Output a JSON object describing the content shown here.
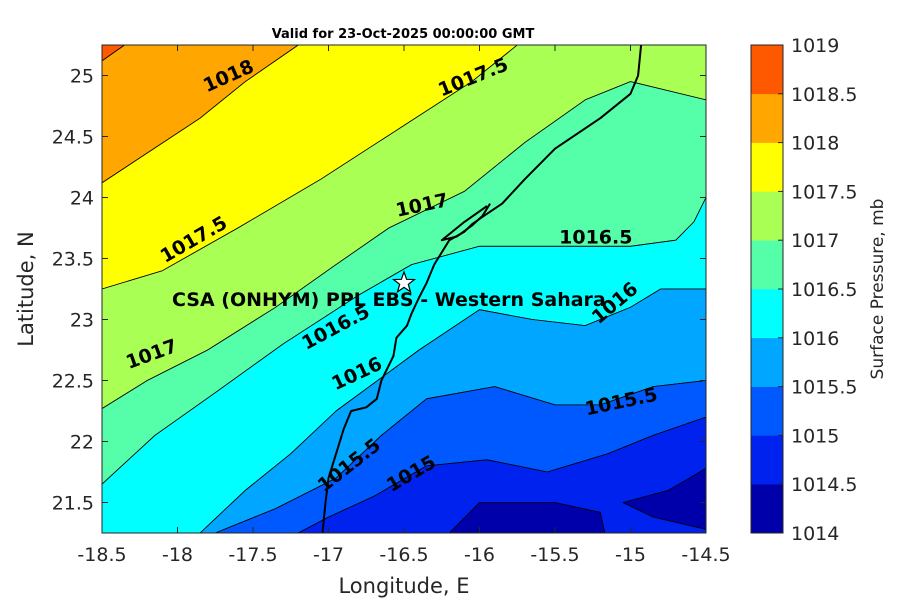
{
  "chart_data": {
    "type": "contour",
    "title": "Valid for 23-Oct-2025 00:00:00 GMT",
    "xlabel": "Longitude, E",
    "ylabel": "Latitude, N",
    "xlim": [
      -18.5,
      -14.5
    ],
    "ylim": [
      21.25,
      25.25
    ],
    "xticks": [
      "-18.5",
      "-18",
      "-17.5",
      "-17",
      "-16.5",
      "-16",
      "-15.5",
      "-15",
      "-14.5"
    ],
    "yticks": [
      "21.5",
      "22",
      "22.5",
      "23",
      "23.5",
      "24",
      "24.5",
      "25"
    ],
    "colorbar": {
      "label": "Surface Pressure, mb",
      "levels": [
        "1014",
        "1014.5",
        "1015",
        "1015.5",
        "1016",
        "1016.5",
        "1017",
        "1017.5",
        "1018",
        "1018.5",
        "1019"
      ],
      "colors": [
        "#0000aa",
        "#0022ee",
        "#0059ff",
        "#00a6ff",
        "#00ffff",
        "#55ffaa",
        "#aaff55",
        "#ffff00",
        "#ffa600",
        "#ff5900",
        "#ff0000"
      ]
    },
    "contour_labels": [
      {
        "text": "1018",
        "lon": -17.66,
        "lat": 24.99,
        "angle": -24
      },
      {
        "text": "1017.5",
        "lon": -16.04,
        "lat": 24.98,
        "angle": -22
      },
      {
        "text": "1017.5",
        "lon": -17.89,
        "lat": 23.65,
        "angle": -30
      },
      {
        "text": "1017",
        "lon": -16.38,
        "lat": 23.93,
        "angle": -12
      },
      {
        "text": "1016.5",
        "lon": -15.23,
        "lat": 23.67,
        "angle": 0
      },
      {
        "text": "1017",
        "lon": -18.17,
        "lat": 22.71,
        "angle": -20
      },
      {
        "text": "1016.5",
        "lon": -16.95,
        "lat": 22.93,
        "angle": -28
      },
      {
        "text": "1016",
        "lon": -15.1,
        "lat": 23.13,
        "angle": -40
      },
      {
        "text": "1016",
        "lon": -16.81,
        "lat": 22.55,
        "angle": -25
      },
      {
        "text": "1015.5",
        "lon": -15.06,
        "lat": 22.32,
        "angle": -12
      },
      {
        "text": "1015.5",
        "lon": -16.86,
        "lat": 21.8,
        "angle": -38
      },
      {
        "text": "1015",
        "lon": -16.45,
        "lat": 21.73,
        "angle": -30
      }
    ],
    "site": {
      "name": "CSA (ONHYM) PPL EBS - Western Sahara",
      "lon": -16.5,
      "lat": 23.3
    },
    "fill_regions": [
      {
        "level_index": 9,
        "poly": [
          [
            -18.5,
            25.25
          ],
          [
            -18.5,
            25.12
          ],
          [
            -18.35,
            25.25
          ]
        ]
      },
      {
        "level_index": 8,
        "poly": [
          [
            -18.5,
            25.12
          ],
          [
            -18.35,
            25.25
          ],
          [
            -17.2,
            25.25
          ],
          [
            -17.55,
            24.95
          ],
          [
            -17.85,
            24.65
          ],
          [
            -18.5,
            24.12
          ]
        ]
      },
      {
        "level_index": 7,
        "poly": [
          [
            -18.5,
            24.12
          ],
          [
            -17.85,
            24.65
          ],
          [
            -17.55,
            24.95
          ],
          [
            -17.2,
            25.25
          ],
          [
            -15.75,
            25.25
          ],
          [
            -16.05,
            24.95
          ],
          [
            -16.55,
            24.55
          ],
          [
            -17.05,
            24.15
          ],
          [
            -17.6,
            23.75
          ],
          [
            -18.1,
            23.4
          ],
          [
            -18.5,
            23.25
          ]
        ]
      },
      {
        "level_index": 6,
        "poly": [
          [
            -18.5,
            23.25
          ],
          [
            -18.1,
            23.4
          ],
          [
            -17.6,
            23.75
          ],
          [
            -17.05,
            24.15
          ],
          [
            -16.55,
            24.55
          ],
          [
            -16.05,
            24.95
          ],
          [
            -15.75,
            25.25
          ],
          [
            -14.5,
            25.25
          ],
          [
            -14.5,
            24.8
          ],
          [
            -15.0,
            24.95
          ],
          [
            -15.3,
            24.8
          ],
          [
            -15.7,
            24.45
          ],
          [
            -16.1,
            24.05
          ],
          [
            -16.6,
            23.75
          ],
          [
            -16.95,
            23.45
          ],
          [
            -17.35,
            23.1
          ],
          [
            -17.8,
            22.75
          ],
          [
            -18.2,
            22.5
          ],
          [
            -18.5,
            22.27
          ]
        ]
      },
      {
        "level_index": 5,
        "poly": [
          [
            -18.5,
            22.27
          ],
          [
            -18.2,
            22.5
          ],
          [
            -17.8,
            22.75
          ],
          [
            -17.35,
            23.1
          ],
          [
            -16.95,
            23.45
          ],
          [
            -16.6,
            23.75
          ],
          [
            -16.1,
            24.05
          ],
          [
            -15.7,
            24.45
          ],
          [
            -15.3,
            24.8
          ],
          [
            -15.0,
            24.95
          ],
          [
            -14.5,
            24.8
          ],
          [
            -14.5,
            24.0
          ],
          [
            -14.58,
            23.8
          ],
          [
            -14.7,
            23.65
          ],
          [
            -15.0,
            23.6
          ],
          [
            -15.5,
            23.6
          ],
          [
            -16.0,
            23.6
          ],
          [
            -16.45,
            23.45
          ],
          [
            -16.8,
            23.2
          ],
          [
            -17.3,
            22.8
          ],
          [
            -17.75,
            22.4
          ],
          [
            -18.15,
            22.05
          ],
          [
            -18.5,
            21.65
          ]
        ]
      },
      {
        "level_index": 4,
        "poly": [
          [
            -18.5,
            21.65
          ],
          [
            -18.15,
            22.05
          ],
          [
            -17.75,
            22.4
          ],
          [
            -17.3,
            22.8
          ],
          [
            -16.8,
            23.2
          ],
          [
            -16.45,
            23.45
          ],
          [
            -16.0,
            23.6
          ],
          [
            -15.5,
            23.6
          ],
          [
            -15.0,
            23.6
          ],
          [
            -14.7,
            23.65
          ],
          [
            -14.58,
            23.8
          ],
          [
            -14.5,
            24.0
          ],
          [
            -14.5,
            23.25
          ],
          [
            -14.8,
            23.25
          ],
          [
            -15.0,
            23.1
          ],
          [
            -15.3,
            22.95
          ],
          [
            -15.65,
            23.0
          ],
          [
            -16.0,
            23.08
          ],
          [
            -16.4,
            22.75
          ],
          [
            -16.95,
            22.25
          ],
          [
            -17.25,
            21.9
          ],
          [
            -17.55,
            21.6
          ],
          [
            -17.85,
            21.25
          ],
          [
            -18.5,
            21.25
          ]
        ]
      },
      {
        "level_index": 3,
        "poly": [
          [
            -17.85,
            21.25
          ],
          [
            -17.55,
            21.6
          ],
          [
            -17.25,
            21.9
          ],
          [
            -16.95,
            22.25
          ],
          [
            -16.4,
            22.75
          ],
          [
            -16.0,
            23.08
          ],
          [
            -15.65,
            23.0
          ],
          [
            -15.3,
            22.95
          ],
          [
            -15.0,
            23.1
          ],
          [
            -14.8,
            23.25
          ],
          [
            -14.5,
            23.25
          ],
          [
            -14.5,
            22.5
          ],
          [
            -14.85,
            22.45
          ],
          [
            -15.2,
            22.3
          ],
          [
            -15.5,
            22.3
          ],
          [
            -15.9,
            22.45
          ],
          [
            -16.35,
            22.35
          ],
          [
            -16.65,
            22.05
          ],
          [
            -16.95,
            21.7
          ],
          [
            -17.35,
            21.45
          ],
          [
            -17.75,
            21.25
          ]
        ]
      },
      {
        "level_index": 2,
        "poly": [
          [
            -17.75,
            21.25
          ],
          [
            -17.35,
            21.45
          ],
          [
            -16.95,
            21.7
          ],
          [
            -16.65,
            22.05
          ],
          [
            -16.35,
            22.35
          ],
          [
            -15.9,
            22.45
          ],
          [
            -15.5,
            22.3
          ],
          [
            -15.2,
            22.3
          ],
          [
            -14.85,
            22.45
          ],
          [
            -14.5,
            22.5
          ],
          [
            -14.5,
            22.2
          ],
          [
            -14.85,
            22.05
          ],
          [
            -15.15,
            21.9
          ],
          [
            -15.55,
            21.75
          ],
          [
            -15.95,
            21.85
          ],
          [
            -16.35,
            21.8
          ],
          [
            -16.7,
            21.55
          ],
          [
            -17.0,
            21.38
          ],
          [
            -17.2,
            21.25
          ]
        ]
      },
      {
        "level_index": 1,
        "poly": [
          [
            -17.2,
            21.25
          ],
          [
            -17.0,
            21.38
          ],
          [
            -16.7,
            21.55
          ],
          [
            -16.35,
            21.8
          ],
          [
            -15.95,
            21.85
          ],
          [
            -15.55,
            21.75
          ],
          [
            -15.15,
            21.9
          ],
          [
            -14.85,
            22.05
          ],
          [
            -14.5,
            22.2
          ],
          [
            -14.5,
            21.25
          ]
        ]
      },
      {
        "level_index": 0,
        "poly": [
          [
            -16.2,
            21.25
          ],
          [
            -16.0,
            21.5
          ],
          [
            -15.5,
            21.5
          ],
          [
            -15.2,
            21.42
          ],
          [
            -15.17,
            21.25
          ]
        ]
      },
      {
        "level_index": 0,
        "poly": [
          [
            -14.5,
            21.78
          ],
          [
            -14.75,
            21.6
          ],
          [
            -15.05,
            21.5
          ],
          [
            -14.85,
            21.38
          ],
          [
            -14.5,
            21.28
          ]
        ]
      }
    ],
    "coastline": [
      [
        -14.93,
        25.25
      ],
      [
        -14.95,
        25.0
      ],
      [
        -15.0,
        24.85
      ],
      [
        -15.2,
        24.65
      ],
      [
        -15.5,
        24.4
      ],
      [
        -15.7,
        24.15
      ],
      [
        -15.85,
        23.95
      ],
      [
        -15.97,
        23.85
      ],
      [
        -16.05,
        23.78
      ],
      [
        -16.1,
        23.72
      ],
      [
        -16.2,
        23.65
      ],
      [
        -16.3,
        23.45
      ],
      [
        -16.35,
        23.3
      ],
      [
        -16.4,
        23.18
      ],
      [
        -16.45,
        23.05
      ],
      [
        -16.48,
        22.95
      ],
      [
        -16.55,
        22.85
      ],
      [
        -16.57,
        22.7
      ],
      [
        -16.65,
        22.5
      ],
      [
        -16.68,
        22.35
      ],
      [
        -16.75,
        22.28
      ],
      [
        -16.85,
        22.25
      ],
      [
        -16.9,
        22.1
      ],
      [
        -16.95,
        21.9
      ],
      [
        -17.0,
        21.7
      ],
      [
        -17.02,
        21.5
      ],
      [
        -17.04,
        21.25
      ]
    ],
    "peninsula": [
      [
        -15.95,
        23.93
      ],
      [
        -16.1,
        23.8
      ],
      [
        -16.2,
        23.7
      ],
      [
        -16.25,
        23.65
      ],
      [
        -16.15,
        23.68
      ],
      [
        -16.05,
        23.77
      ],
      [
        -15.98,
        23.85
      ],
      [
        -15.93,
        23.95
      ]
    ]
  }
}
